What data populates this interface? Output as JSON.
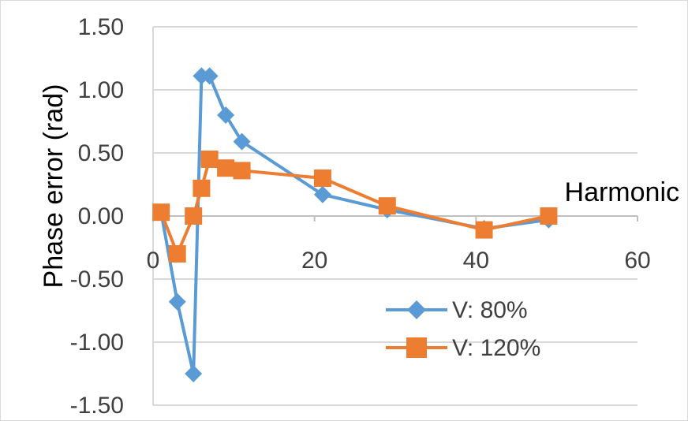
{
  "chart_data": {
    "type": "line",
    "title": "",
    "xlabel": "Harmonic",
    "ylabel": "Phase error (rad)",
    "xlim": [
      0,
      60
    ],
    "ylim": [
      -1.5,
      1.5
    ],
    "x_ticks": [
      "0",
      "20",
      "40",
      "60"
    ],
    "y_ticks": [
      "1.50",
      "1.00",
      "0.50",
      "0.00",
      "-0.50",
      "-1.00",
      "-1.50"
    ],
    "grid": "horizontal",
    "legend_position": "bottom-right",
    "series": [
      {
        "name": "V: 80%",
        "color": "#5b9bd5",
        "marker": "diamond",
        "x": [
          1,
          3,
          5,
          6,
          7,
          9,
          11,
          21,
          29,
          41,
          49
        ],
        "y": [
          0.03,
          -0.68,
          -1.25,
          1.11,
          1.11,
          0.8,
          0.59,
          0.17,
          0.05,
          -0.1,
          -0.03
        ]
      },
      {
        "name": "V: 120%",
        "color": "#ed7d31",
        "marker": "square",
        "x": [
          1,
          3,
          5,
          6,
          7,
          9,
          11,
          21,
          29,
          41,
          49
        ],
        "y": [
          0.03,
          -0.3,
          0.0,
          0.22,
          0.45,
          0.38,
          0.36,
          0.3,
          0.08,
          -0.11,
          0.0
        ]
      }
    ]
  }
}
